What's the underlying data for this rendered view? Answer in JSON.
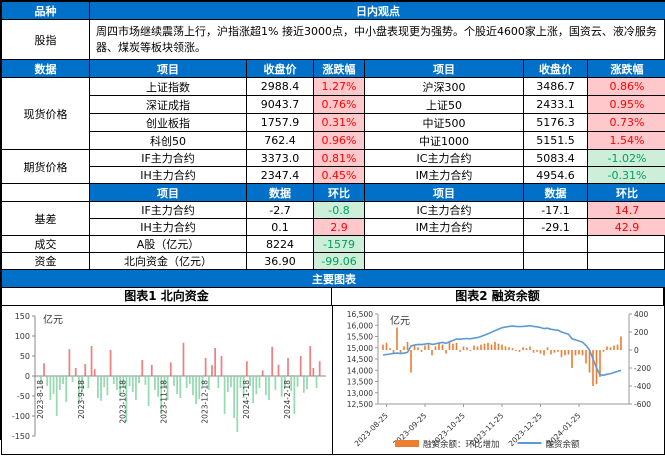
{
  "header": {
    "variety": "品种",
    "view": "日内观点"
  },
  "observation": {
    "variety": "股指",
    "text": "周四市场继续震荡上行，沪指涨超1% 接近3000点，中小盘表现更为强势。个股近4600家上涨，国资云、液冷服务器、煤炭等板块领涨。"
  },
  "price_header": {
    "data": "数据",
    "item": "项目",
    "close": "收盘价",
    "chg": "涨跌幅",
    "item2": "项目",
    "close2": "收盘价",
    "chg2": "涨跌幅"
  },
  "mom_header": {
    "item": "项目",
    "data": "数据",
    "mom": "环比",
    "item2": "项目",
    "data2": "数据",
    "mom2": "环比"
  },
  "sections": {
    "spot_label": "现货价格",
    "spot": [
      {
        "l_item": "上证指数",
        "l_close": "2988.4",
        "l_chg": "1.27%",
        "l_cls": "up",
        "r_item": "沪深300",
        "r_close": "3486.7",
        "r_chg": "0.86%",
        "r_cls": "up"
      },
      {
        "l_item": "深证成指",
        "l_close": "9043.7",
        "l_chg": "0.76%",
        "l_cls": "up",
        "r_item": "上证50",
        "r_close": "2433.1",
        "r_chg": "0.95%",
        "r_cls": "up"
      },
      {
        "l_item": "创业板指",
        "l_close": "1757.9",
        "l_chg": "0.31%",
        "l_cls": "up",
        "r_item": "中证500",
        "r_close": "5176.3",
        "r_chg": "0.73%",
        "r_cls": "up"
      },
      {
        "l_item": "科创50",
        "l_close": "762.4",
        "l_chg": "0.96%",
        "l_cls": "up",
        "r_item": "中证1000",
        "r_close": "5151.5",
        "r_chg": "1.54%",
        "r_cls": "up"
      }
    ],
    "futures_label": "期货价格",
    "futures": [
      {
        "l_item": "IF主力合约",
        "l_close": "3373.0",
        "l_chg": "0.81%",
        "l_cls": "up",
        "r_item": "IC主力合约",
        "r_close": "5083.4",
        "r_chg": "-1.02%",
        "r_cls": "down"
      },
      {
        "l_item": "IH主力合约",
        "l_close": "2347.4",
        "l_chg": "0.45%",
        "l_cls": "up",
        "r_item": "IM主力合约",
        "r_close": "4954.6",
        "r_chg": "-0.31%",
        "r_cls": "down"
      }
    ],
    "basis_label": "基差",
    "basis": [
      {
        "l_item": "IF主力合约",
        "l_data": "-2.7",
        "l_mom": "-0.8",
        "l_cls": "down",
        "r_item": "IC主力合约",
        "r_data": "-17.1",
        "r_mom": "14.7",
        "r_cls": "up"
      },
      {
        "l_item": "IH主力合约",
        "l_data": "0.1",
        "l_mom": "2.9",
        "l_cls": "up",
        "r_item": "IM主力合约",
        "r_data": "-29.1",
        "r_mom": "42.9",
        "r_cls": "up"
      }
    ],
    "volume_label": "成交",
    "volume": {
      "item": "A股（亿元）",
      "data": "8224",
      "mom": "-1579",
      "cls": "down"
    },
    "fund_label": "资金",
    "fund": {
      "item": "北向资金（亿元）",
      "data": "36.90",
      "mom": "-99.06",
      "cls": "down"
    }
  },
  "charts_header": "主要图表",
  "chart1_title": "图表1  北向资金",
  "chart2_title": "图表2  融资余额",
  "chart_data": [
    {
      "type": "bar",
      "title": "北向资金",
      "unit": "亿元",
      "ylim": [
        -150,
        150
      ],
      "yticks": [
        150,
        100,
        50,
        0,
        -50,
        -100,
        -150
      ],
      "x_tick_labels": [
        "2023-8-18",
        "2023-9-18",
        "2023-10-18",
        "2023-11-18",
        "2023-12-18",
        "2024-1-18",
        "2024-2-18"
      ],
      "x_tick_positions": [
        0,
        13,
        26,
        39,
        52,
        65,
        78
      ],
      "positive_color": "#E96B6B",
      "negative_color": "#82D3A2",
      "values": [
        -18,
        32,
        -25,
        -60,
        -45,
        -100,
        -35,
        -20,
        -65,
        67,
        -15,
        20,
        -70,
        -40,
        30,
        -30,
        75,
        17,
        -55,
        -62,
        -28,
        -48,
        65,
        -20,
        -35,
        -50,
        -30,
        -115,
        -25,
        -40,
        -60,
        -18,
        40,
        -22,
        -75,
        28,
        -35,
        -52,
        -95,
        -30,
        -60,
        34,
        -25,
        -45,
        -55,
        83,
        -30,
        -20,
        -48,
        -70,
        -58,
        -25,
        45,
        -35,
        27,
        70,
        -30,
        50,
        -95,
        -40,
        -28,
        -105,
        -140,
        -30,
        -55,
        37,
        -25,
        -68,
        -45,
        -30,
        14,
        -48,
        -60,
        73,
        -35,
        28,
        -52,
        -30,
        45,
        -38,
        -95,
        -27,
        50,
        -42,
        -33,
        75,
        20,
        -30,
        36.9
      ]
    },
    {
      "type": "line+bar",
      "title": "融资余额",
      "unit": "亿元",
      "left_ylim": [
        12500,
        16500
      ],
      "left_yticks": [
        "16,500",
        "16,000",
        "15,500",
        "15,000",
        "14,500",
        "14,000",
        "13,500",
        "13,000",
        "12,500"
      ],
      "right_ylim": [
        -600,
        400
      ],
      "right_yticks": [
        400,
        200,
        0,
        -200,
        -400,
        -600
      ],
      "x_tick_labels": [
        "2023-08-25",
        "2023-09-25",
        "2023-10-25",
        "2023-11-25",
        "2023-12-25",
        "2024-01-25"
      ],
      "x_tick_positions": [
        1,
        12,
        23,
        34,
        45,
        56
      ],
      "legend": [
        {
          "label": "融资余额：环比增加",
          "color": "#ED7D31",
          "marker": "bar"
        },
        {
          "label": "融资余额",
          "color": "#5B9BD5",
          "marker": "line"
        }
      ],
      "bar_values": [
        60,
        80,
        20,
        -40,
        250,
        -30,
        40,
        90,
        -250,
        60,
        30,
        -20,
        50,
        60,
        -60,
        40,
        80,
        60,
        -40,
        90,
        70,
        80,
        -20,
        40,
        30,
        -10,
        50,
        40,
        60,
        70,
        80,
        60,
        90,
        70,
        60,
        40,
        30,
        20,
        -10,
        -20,
        30,
        20,
        40,
        -30,
        -20,
        -40,
        -60,
        30,
        -50,
        -30,
        -20,
        -80,
        -60,
        -50,
        -200,
        -60,
        -50,
        -60,
        -150,
        -250,
        -400,
        -380,
        -300,
        -20,
        40,
        30,
        50,
        60,
        150
      ],
      "line_values": [
        14680,
        14700,
        14720,
        14750,
        14760,
        14740,
        14760,
        14800,
        15080,
        15120,
        15150,
        15140,
        15160,
        15190,
        15150,
        15170,
        15210,
        15240,
        15200,
        15270,
        15320,
        15390,
        15380,
        15400,
        15410,
        15400,
        15430,
        15450,
        15500,
        15560,
        15620,
        15690,
        15760,
        15830,
        15890,
        15920,
        15950,
        15960,
        15950,
        15940,
        15950,
        15960,
        15980,
        15950,
        15930,
        15900,
        15850,
        15870,
        15820,
        15800,
        15780,
        15700,
        15650,
        15600,
        15400,
        15350,
        15300,
        15250,
        15100,
        14900,
        14500,
        14100,
        13800,
        13780,
        13820,
        13850,
        13900,
        13950,
        14000
      ]
    }
  ]
}
